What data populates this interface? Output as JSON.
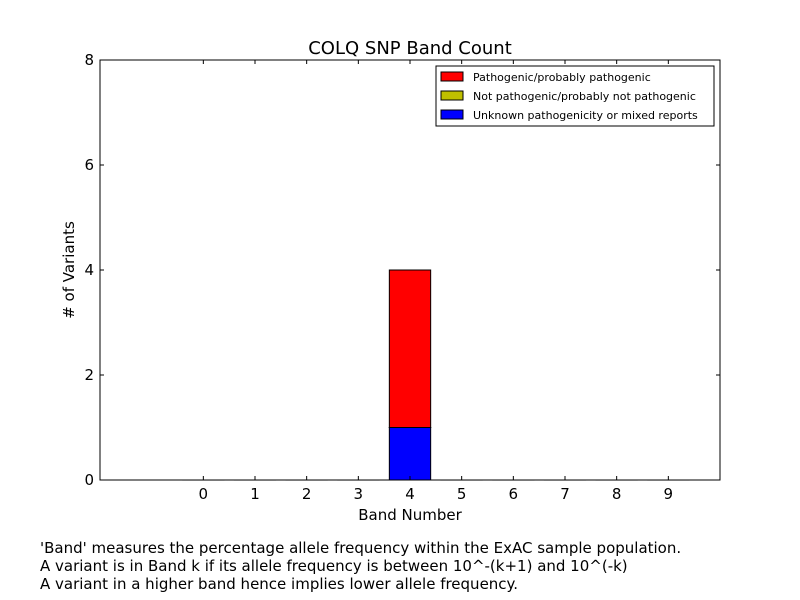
{
  "chart_data": {
    "type": "bar",
    "stacked": true,
    "title": "COLQ SNP Band Count",
    "xlabel": "Band Number",
    "ylabel": "# of Variants",
    "categories": [
      "0",
      "1",
      "2",
      "3",
      "4",
      "5",
      "6",
      "7",
      "8",
      "9"
    ],
    "x_range": [
      -2,
      10
    ],
    "ylim": [
      0,
      8
    ],
    "yticks": [
      0,
      2,
      4,
      6,
      8
    ],
    "grid": false,
    "legend_position": "top-right",
    "series": [
      {
        "name": "Unknown pathogenicity or mixed reports",
        "color": "#0000ff",
        "values": [
          0,
          0,
          0,
          0,
          1,
          0,
          0,
          0,
          0,
          0
        ]
      },
      {
        "name": "Not pathogenic/probably not pathogenic",
        "color": "#bfbf00",
        "values": [
          0,
          0,
          0,
          0,
          0,
          0,
          0,
          0,
          0,
          0
        ]
      },
      {
        "name": "Pathogenic/probably pathogenic",
        "color": "#ff0000",
        "values": [
          0,
          0,
          0,
          0,
          3,
          0,
          0,
          0,
          0,
          0
        ]
      }
    ],
    "legend_order": [
      2,
      1,
      0
    ]
  },
  "notes": [
    "'Band' measures the percentage allele frequency within the ExAC sample population.",
    "A variant is in Band k if its allele frequency is between 10^-(k+1) and 10^(-k)",
    "A variant in a higher band hence implies lower allele frequency."
  ]
}
